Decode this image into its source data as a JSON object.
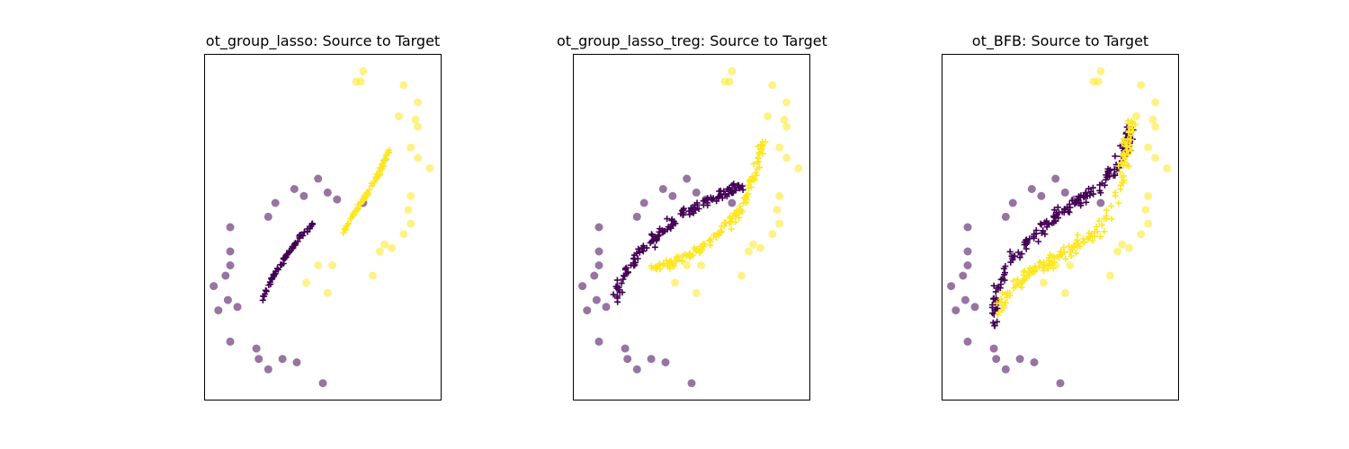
{
  "colors": {
    "class0": "#440154",
    "class1": "#fde725",
    "frame": "#000000"
  },
  "chart_data": [
    {
      "type": "scatter",
      "title": "ot_group_lasso: Source to Target",
      "xlim": [
        0,
        1
      ],
      "ylim": [
        0,
        1
      ],
      "grid": false,
      "legend": "none",
      "target_points": [
        {
          "x": 0.04,
          "y": 0.33,
          "cls": 0
        },
        {
          "x": 0.06,
          "y": 0.26,
          "cls": 0
        },
        {
          "x": 0.1,
          "y": 0.29,
          "cls": 0
        },
        {
          "x": 0.14,
          "y": 0.27,
          "cls": 0
        },
        {
          "x": 0.09,
          "y": 0.36,
          "cls": 0
        },
        {
          "x": 0.11,
          "y": 0.39,
          "cls": 0
        },
        {
          "x": 0.11,
          "y": 0.43,
          "cls": 0
        },
        {
          "x": 0.11,
          "y": 0.5,
          "cls": 0
        },
        {
          "x": 0.11,
          "y": 0.17,
          "cls": 0
        },
        {
          "x": 0.22,
          "y": 0.15,
          "cls": 0
        },
        {
          "x": 0.23,
          "y": 0.12,
          "cls": 0
        },
        {
          "x": 0.27,
          "y": 0.09,
          "cls": 0
        },
        {
          "x": 0.33,
          "y": 0.12,
          "cls": 0
        },
        {
          "x": 0.39,
          "y": 0.11,
          "cls": 0
        },
        {
          "x": 0.5,
          "y": 0.05,
          "cls": 0
        },
        {
          "x": 0.27,
          "y": 0.53,
          "cls": 0
        },
        {
          "x": 0.3,
          "y": 0.57,
          "cls": 0
        },
        {
          "x": 0.38,
          "y": 0.61,
          "cls": 0
        },
        {
          "x": 0.42,
          "y": 0.59,
          "cls": 0
        },
        {
          "x": 0.48,
          "y": 0.64,
          "cls": 0
        },
        {
          "x": 0.52,
          "y": 0.6,
          "cls": 0
        },
        {
          "x": 0.56,
          "y": 0.58,
          "cls": 0
        },
        {
          "x": 0.67,
          "y": 0.57,
          "cls": 0
        },
        {
          "x": 0.67,
          "y": 0.95,
          "cls": 1
        },
        {
          "x": 0.64,
          "y": 0.92,
          "cls": 1
        },
        {
          "x": 0.66,
          "y": 0.92,
          "cls": 1
        },
        {
          "x": 0.84,
          "y": 0.91,
          "cls": 1
        },
        {
          "x": 0.9,
          "y": 0.86,
          "cls": 1
        },
        {
          "x": 0.82,
          "y": 0.82,
          "cls": 1
        },
        {
          "x": 0.89,
          "y": 0.81,
          "cls": 1
        },
        {
          "x": 0.9,
          "y": 0.79,
          "cls": 1
        },
        {
          "x": 0.87,
          "y": 0.73,
          "cls": 1
        },
        {
          "x": 0.9,
          "y": 0.7,
          "cls": 1
        },
        {
          "x": 0.95,
          "y": 0.67,
          "cls": 1
        },
        {
          "x": 0.87,
          "y": 0.59,
          "cls": 1
        },
        {
          "x": 0.86,
          "y": 0.55,
          "cls": 1
        },
        {
          "x": 0.87,
          "y": 0.51,
          "cls": 1
        },
        {
          "x": 0.84,
          "y": 0.48,
          "cls": 1
        },
        {
          "x": 0.76,
          "y": 0.45,
          "cls": 1
        },
        {
          "x": 0.79,
          "y": 0.44,
          "cls": 1
        },
        {
          "x": 0.74,
          "y": 0.43,
          "cls": 1
        },
        {
          "x": 0.48,
          "y": 0.39,
          "cls": 1
        },
        {
          "x": 0.54,
          "y": 0.39,
          "cls": 1
        },
        {
          "x": 0.71,
          "y": 0.36,
          "cls": 1
        },
        {
          "x": 0.43,
          "y": 0.34,
          "cls": 1
        },
        {
          "x": 0.52,
          "y": 0.31,
          "cls": 1
        }
      ],
      "transported_curves": [
        {
          "cls": 0,
          "count": 70,
          "jitter": 0.003,
          "path": [
            [
              0.24,
              0.29
            ],
            [
              0.27,
              0.33
            ],
            [
              0.3,
              0.37
            ],
            [
              0.35,
              0.42
            ],
            [
              0.4,
              0.47
            ],
            [
              0.46,
              0.51
            ]
          ]
        },
        {
          "cls": 1,
          "count": 80,
          "jitter": 0.003,
          "path": [
            [
              0.59,
              0.49
            ],
            [
              0.62,
              0.53
            ],
            [
              0.66,
              0.57
            ],
            [
              0.7,
              0.61
            ],
            [
              0.74,
              0.66
            ],
            [
              0.78,
              0.72
            ]
          ]
        }
      ]
    },
    {
      "type": "scatter",
      "title": "ot_group_lasso_treg: Source to Target",
      "xlim": [
        0,
        1
      ],
      "ylim": [
        0,
        1
      ],
      "grid": false,
      "legend": "none",
      "target_points": [
        {
          "x": 0.04,
          "y": 0.33,
          "cls": 0
        },
        {
          "x": 0.06,
          "y": 0.26,
          "cls": 0
        },
        {
          "x": 0.1,
          "y": 0.29,
          "cls": 0
        },
        {
          "x": 0.14,
          "y": 0.27,
          "cls": 0
        },
        {
          "x": 0.09,
          "y": 0.36,
          "cls": 0
        },
        {
          "x": 0.11,
          "y": 0.39,
          "cls": 0
        },
        {
          "x": 0.11,
          "y": 0.43,
          "cls": 0
        },
        {
          "x": 0.11,
          "y": 0.5,
          "cls": 0
        },
        {
          "x": 0.11,
          "y": 0.17,
          "cls": 0
        },
        {
          "x": 0.22,
          "y": 0.15,
          "cls": 0
        },
        {
          "x": 0.23,
          "y": 0.12,
          "cls": 0
        },
        {
          "x": 0.27,
          "y": 0.09,
          "cls": 0
        },
        {
          "x": 0.33,
          "y": 0.12,
          "cls": 0
        },
        {
          "x": 0.39,
          "y": 0.11,
          "cls": 0
        },
        {
          "x": 0.5,
          "y": 0.05,
          "cls": 0
        },
        {
          "x": 0.27,
          "y": 0.53,
          "cls": 0
        },
        {
          "x": 0.3,
          "y": 0.57,
          "cls": 0
        },
        {
          "x": 0.38,
          "y": 0.61,
          "cls": 0
        },
        {
          "x": 0.42,
          "y": 0.59,
          "cls": 0
        },
        {
          "x": 0.48,
          "y": 0.64,
          "cls": 0
        },
        {
          "x": 0.52,
          "y": 0.6,
          "cls": 0
        },
        {
          "x": 0.56,
          "y": 0.58,
          "cls": 0
        },
        {
          "x": 0.67,
          "y": 0.57,
          "cls": 0
        },
        {
          "x": 0.67,
          "y": 0.95,
          "cls": 1
        },
        {
          "x": 0.64,
          "y": 0.92,
          "cls": 1
        },
        {
          "x": 0.66,
          "y": 0.92,
          "cls": 1
        },
        {
          "x": 0.84,
          "y": 0.91,
          "cls": 1
        },
        {
          "x": 0.9,
          "y": 0.86,
          "cls": 1
        },
        {
          "x": 0.82,
          "y": 0.82,
          "cls": 1
        },
        {
          "x": 0.89,
          "y": 0.81,
          "cls": 1
        },
        {
          "x": 0.9,
          "y": 0.79,
          "cls": 1
        },
        {
          "x": 0.87,
          "y": 0.73,
          "cls": 1
        },
        {
          "x": 0.9,
          "y": 0.7,
          "cls": 1
        },
        {
          "x": 0.95,
          "y": 0.67,
          "cls": 1
        },
        {
          "x": 0.87,
          "y": 0.59,
          "cls": 1
        },
        {
          "x": 0.86,
          "y": 0.55,
          "cls": 1
        },
        {
          "x": 0.87,
          "y": 0.51,
          "cls": 1
        },
        {
          "x": 0.84,
          "y": 0.48,
          "cls": 1
        },
        {
          "x": 0.76,
          "y": 0.45,
          "cls": 1
        },
        {
          "x": 0.79,
          "y": 0.44,
          "cls": 1
        },
        {
          "x": 0.74,
          "y": 0.43,
          "cls": 1
        },
        {
          "x": 0.48,
          "y": 0.39,
          "cls": 1
        },
        {
          "x": 0.54,
          "y": 0.39,
          "cls": 1
        },
        {
          "x": 0.71,
          "y": 0.36,
          "cls": 1
        },
        {
          "x": 0.43,
          "y": 0.34,
          "cls": 1
        },
        {
          "x": 0.52,
          "y": 0.31,
          "cls": 1
        }
      ],
      "transported_curves": [
        {
          "cls": 0,
          "count": 140,
          "jitter": 0.007,
          "path": [
            [
              0.18,
              0.29
            ],
            [
              0.2,
              0.34
            ],
            [
              0.25,
              0.4
            ],
            [
              0.33,
              0.46
            ],
            [
              0.42,
              0.51
            ],
            [
              0.52,
              0.56
            ],
            [
              0.61,
              0.59
            ],
            [
              0.68,
              0.61
            ],
            [
              0.72,
              0.62
            ]
          ]
        },
        {
          "cls": 1,
          "count": 140,
          "jitter": 0.007,
          "path": [
            [
              0.34,
              0.38
            ],
            [
              0.42,
              0.4
            ],
            [
              0.5,
              0.42
            ],
            [
              0.58,
              0.46
            ],
            [
              0.66,
              0.51
            ],
            [
              0.72,
              0.57
            ],
            [
              0.76,
              0.64
            ],
            [
              0.78,
              0.7
            ],
            [
              0.8,
              0.75
            ]
          ]
        }
      ]
    },
    {
      "type": "scatter",
      "title": "ot_BFB: Source to Target",
      "xlim": [
        0,
        1
      ],
      "ylim": [
        0,
        1
      ],
      "grid": false,
      "legend": "none",
      "target_points": [
        {
          "x": 0.04,
          "y": 0.33,
          "cls": 0
        },
        {
          "x": 0.06,
          "y": 0.26,
          "cls": 0
        },
        {
          "x": 0.1,
          "y": 0.29,
          "cls": 0
        },
        {
          "x": 0.14,
          "y": 0.27,
          "cls": 0
        },
        {
          "x": 0.09,
          "y": 0.36,
          "cls": 0
        },
        {
          "x": 0.11,
          "y": 0.39,
          "cls": 0
        },
        {
          "x": 0.11,
          "y": 0.43,
          "cls": 0
        },
        {
          "x": 0.11,
          "y": 0.5,
          "cls": 0
        },
        {
          "x": 0.11,
          "y": 0.17,
          "cls": 0
        },
        {
          "x": 0.22,
          "y": 0.15,
          "cls": 0
        },
        {
          "x": 0.23,
          "y": 0.12,
          "cls": 0
        },
        {
          "x": 0.27,
          "y": 0.09,
          "cls": 0
        },
        {
          "x": 0.33,
          "y": 0.12,
          "cls": 0
        },
        {
          "x": 0.39,
          "y": 0.11,
          "cls": 0
        },
        {
          "x": 0.5,
          "y": 0.05,
          "cls": 0
        },
        {
          "x": 0.27,
          "y": 0.53,
          "cls": 0
        },
        {
          "x": 0.3,
          "y": 0.57,
          "cls": 0
        },
        {
          "x": 0.38,
          "y": 0.61,
          "cls": 0
        },
        {
          "x": 0.42,
          "y": 0.59,
          "cls": 0
        },
        {
          "x": 0.48,
          "y": 0.64,
          "cls": 0
        },
        {
          "x": 0.52,
          "y": 0.6,
          "cls": 0
        },
        {
          "x": 0.56,
          "y": 0.58,
          "cls": 0
        },
        {
          "x": 0.67,
          "y": 0.57,
          "cls": 0
        },
        {
          "x": 0.67,
          "y": 0.95,
          "cls": 1
        },
        {
          "x": 0.64,
          "y": 0.92,
          "cls": 1
        },
        {
          "x": 0.66,
          "y": 0.92,
          "cls": 1
        },
        {
          "x": 0.84,
          "y": 0.91,
          "cls": 1
        },
        {
          "x": 0.9,
          "y": 0.86,
          "cls": 1
        },
        {
          "x": 0.82,
          "y": 0.82,
          "cls": 1
        },
        {
          "x": 0.89,
          "y": 0.81,
          "cls": 1
        },
        {
          "x": 0.9,
          "y": 0.79,
          "cls": 1
        },
        {
          "x": 0.87,
          "y": 0.73,
          "cls": 1
        },
        {
          "x": 0.9,
          "y": 0.7,
          "cls": 1
        },
        {
          "x": 0.95,
          "y": 0.67,
          "cls": 1
        },
        {
          "x": 0.87,
          "y": 0.59,
          "cls": 1
        },
        {
          "x": 0.86,
          "y": 0.55,
          "cls": 1
        },
        {
          "x": 0.87,
          "y": 0.51,
          "cls": 1
        },
        {
          "x": 0.84,
          "y": 0.48,
          "cls": 1
        },
        {
          "x": 0.76,
          "y": 0.45,
          "cls": 1
        },
        {
          "x": 0.79,
          "y": 0.44,
          "cls": 1
        },
        {
          "x": 0.74,
          "y": 0.43,
          "cls": 1
        },
        {
          "x": 0.48,
          "y": 0.39,
          "cls": 1
        },
        {
          "x": 0.54,
          "y": 0.39,
          "cls": 1
        },
        {
          "x": 0.71,
          "y": 0.36,
          "cls": 1
        },
        {
          "x": 0.43,
          "y": 0.34,
          "cls": 1
        },
        {
          "x": 0.52,
          "y": 0.31,
          "cls": 1
        }
      ],
      "transported_curves": [
        {
          "cls": 0,
          "count": 170,
          "jitter": 0.01,
          "path": [
            [
              0.22,
              0.21
            ],
            [
              0.22,
              0.26
            ],
            [
              0.23,
              0.31
            ],
            [
              0.27,
              0.38
            ],
            [
              0.33,
              0.44
            ],
            [
              0.42,
              0.5
            ],
            [
              0.52,
              0.55
            ],
            [
              0.6,
              0.59
            ],
            [
              0.68,
              0.63
            ],
            [
              0.74,
              0.68
            ],
            [
              0.78,
              0.74
            ],
            [
              0.79,
              0.8
            ]
          ]
        },
        {
          "cls": 1,
          "count": 170,
          "jitter": 0.01,
          "path": [
            [
              0.24,
              0.24
            ],
            [
              0.26,
              0.29
            ],
            [
              0.3,
              0.33
            ],
            [
              0.38,
              0.37
            ],
            [
              0.48,
              0.41
            ],
            [
              0.58,
              0.45
            ],
            [
              0.66,
              0.49
            ],
            [
              0.72,
              0.55
            ],
            [
              0.76,
              0.64
            ],
            [
              0.78,
              0.73
            ],
            [
              0.8,
              0.81
            ]
          ]
        }
      ]
    }
  ]
}
